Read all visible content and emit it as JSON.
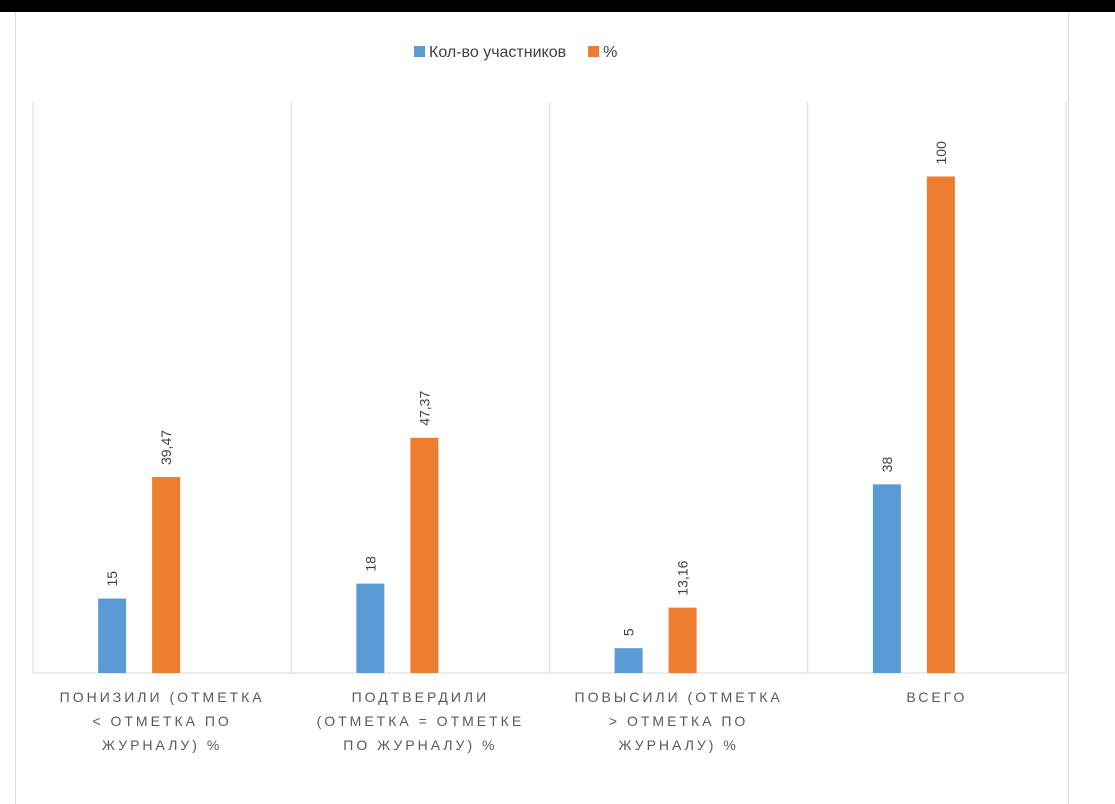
{
  "chart_data": {
    "type": "bar",
    "categories": [
      [
        "ПОНИЗИЛИ (ОТМЕТКА",
        "< ОТМЕТКА ПО",
        "ЖУРНАЛУ) %"
      ],
      [
        "ПОДТВЕРДИЛИ",
        "(ОТМЕТКА = ОТМЕТКЕ",
        "ПО ЖУРНАЛУ) %"
      ],
      [
        "ПОВЫСИЛИ (ОТМЕТКА",
        "> ОТМЕТКА ПО",
        "ЖУРНАЛУ) %"
      ],
      [
        "ВСЕГО"
      ]
    ],
    "series": [
      {
        "name": "Кол-во участников",
        "values": [
          15,
          18,
          5,
          38
        ],
        "labels": [
          "15",
          "18",
          "5",
          "38"
        ],
        "color": "#5b9bd5"
      },
      {
        "name": "%",
        "values": [
          39.47,
          47.37,
          13.16,
          100
        ],
        "labels": [
          "39,47",
          "47,37",
          "13,16",
          "100"
        ],
        "color": "#ed7d31"
      }
    ],
    "ylim": [
      0,
      115
    ],
    "legend_position": "top",
    "gridlines": "vertical category separators"
  }
}
